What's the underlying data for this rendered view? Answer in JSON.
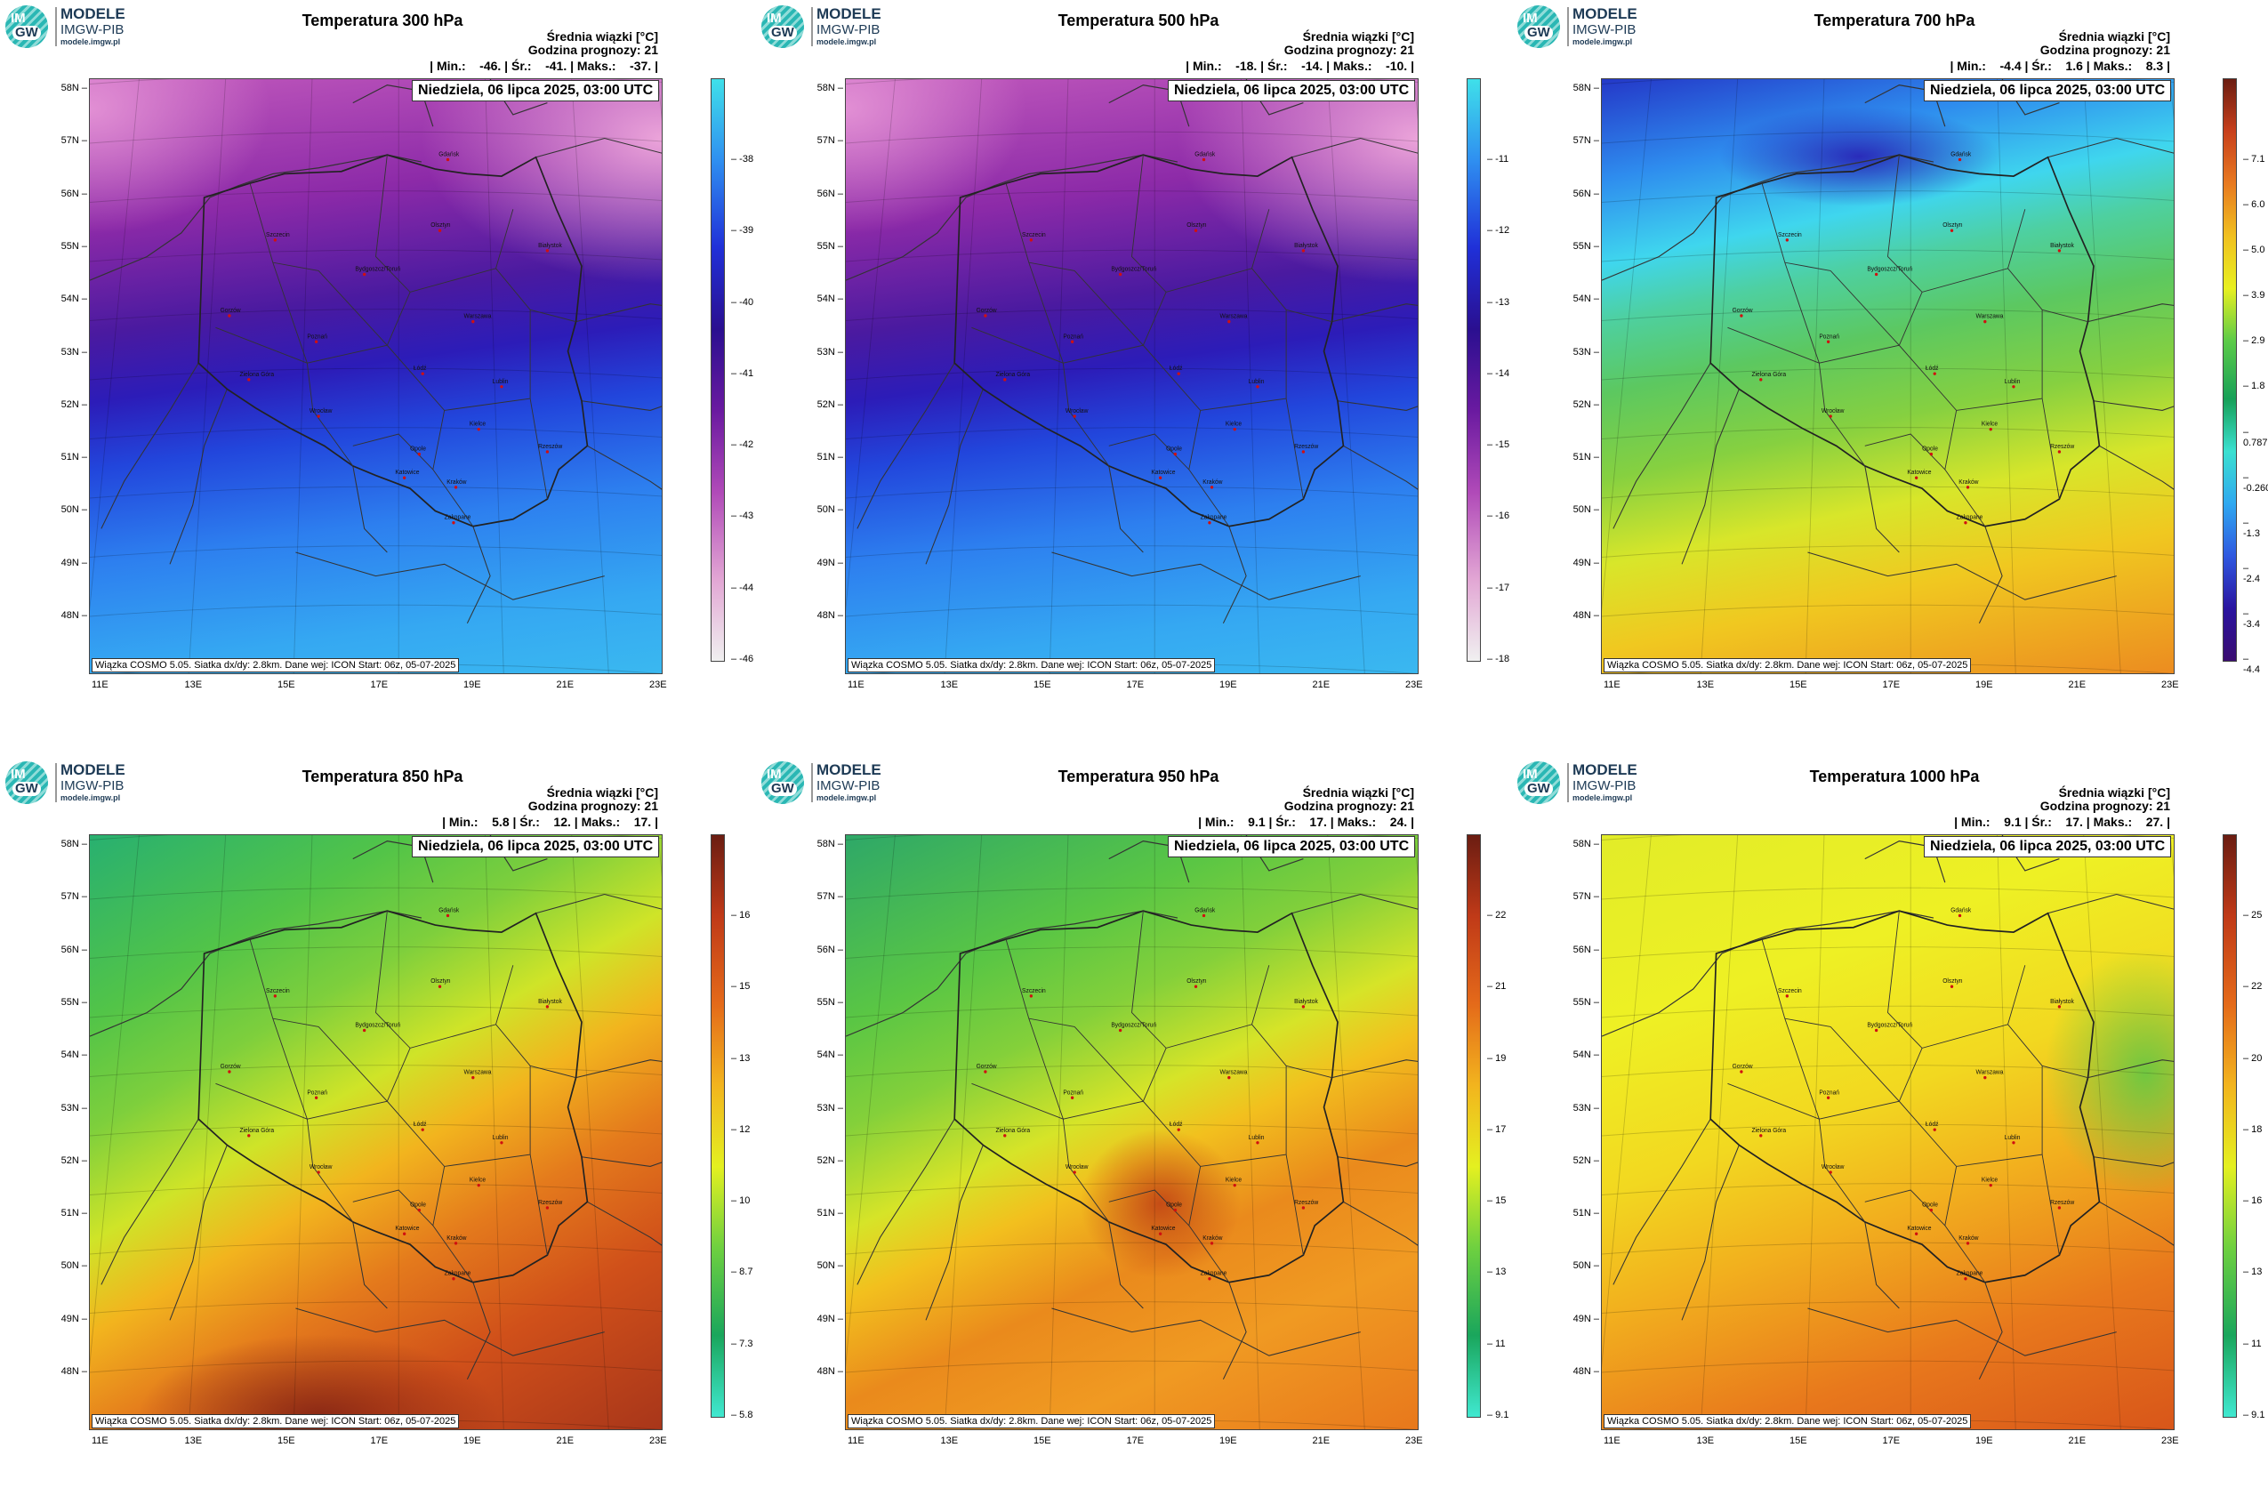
{
  "logo": {
    "l1": "IM",
    "l2": "GW",
    "t1": "MODELE",
    "t2": "IMGW-PIB",
    "t3": "modele.imgw.pl"
  },
  "info_line1": "Średnia wiązki [°C]",
  "info_line2": "Godzina prognozy: 21",
  "date": "Niedziela, 06 lipca 2025, 03:00 UTC",
  "footer": "Wiązka COSMO 5.05. Siatka dx/dy: 2.8km. Dane wej: ICON Start: 06z, 05-07-2025",
  "lat_labels": [
    "58N",
    "57N",
    "56N",
    "55N",
    "54N",
    "53N",
    "52N",
    "51N",
    "50N",
    "49N",
    "48N"
  ],
  "lon_labels": [
    "11E",
    "13E",
    "15E",
    "17E",
    "19E",
    "21E",
    "23E"
  ],
  "cities": [
    "Gdańsk",
    "Olsztyn",
    "Szczecin",
    "Białystok",
    "Bydgoszcz/Toruń",
    "Gorzów",
    "Poznań",
    "Warszawa",
    "Zielona Góra",
    "Łódź",
    "Lublin",
    "Wrocław",
    "Kielce",
    "Opole",
    "Rzeszów",
    "Katowice",
    "Kraków",
    "Zakopane"
  ],
  "panels": [
    {
      "title": "Temperatura 300 hPa",
      "stats": "| Min.:    -46. | Śr.:    -41. | Maks.:    -37. |",
      "ticks": [
        "-38",
        "-39",
        "-40",
        "-41",
        "-42",
        "-43",
        "-44",
        "-46"
      ],
      "colors": [
        "#3fe0ea",
        "#2f8ff0",
        "#2030d8",
        "#2a0f90",
        "#6a1aa0",
        "#b04ab8",
        "#e2a6d4",
        "#f0f0f0"
      ],
      "palette": "cool"
    },
    {
      "title": "Temperatura 500 hPa",
      "stats": "| Min.:    -18. | Śr.:    -14. | Maks.:    -10. |",
      "ticks": [
        "-11",
        "-12",
        "-13",
        "-14",
        "-15",
        "-16",
        "-17",
        "-18"
      ],
      "colors": [
        "#3fe0ea",
        "#2f8ff0",
        "#2030d8",
        "#2a0f90",
        "#6a1aa0",
        "#b04ab8",
        "#e2a6d4",
        "#f0f0f0"
      ],
      "palette": "cool"
    },
    {
      "title": "Temperatura 700 hPa",
      "stats": "| Min.:    -4.4 | Śr.:    1.6 | Maks.:    8.3 |",
      "ticks": [
        "7.1",
        "6.0",
        "5.0",
        "3.9",
        "2.9",
        "1.8",
        "0.787",
        "-0.260",
        "-1.3",
        "-2.4",
        "-3.4",
        "-4.4"
      ],
      "colors": [
        "#6b1d12",
        "#c8401c",
        "#e87a20",
        "#f0c020",
        "#e8f020",
        "#5ccb48",
        "#17a058",
        "#3ae0d0",
        "#2fa8f0",
        "#2f58e0",
        "#2a14a0",
        "#3a0c70"
      ],
      "palette": "warm700"
    },
    {
      "title": "Temperatura 850 hPa",
      "stats": "| Min.:    5.8 | Śr.:    12. | Maks.:    17. |",
      "ticks": [
        "16",
        "15",
        "13",
        "12",
        "10",
        "8.7",
        "7.3",
        "5.8"
      ],
      "colors": [
        "#6b1d12",
        "#c03a18",
        "#e46a1a",
        "#f2b41e",
        "#e4f020",
        "#6ed040",
        "#1aa65c",
        "#40e8d0"
      ],
      "palette": "warm850"
    },
    {
      "title": "Temperatura 950 hPa",
      "stats": "| Min.:    9.1 | Śr.:    17. | Maks.:    24. |",
      "ticks": [
        "22",
        "21",
        "19",
        "17",
        "15",
        "13",
        "11",
        "9.1"
      ],
      "colors": [
        "#6b1d12",
        "#c03a18",
        "#e46a1a",
        "#f2b41e",
        "#e4f020",
        "#6ed040",
        "#1aa65c",
        "#40e8d0"
      ],
      "palette": "warm950"
    },
    {
      "title": "Temperatura 1000 hPa",
      "stats": "| Min.:    9.1 | Śr.:    17. | Maks.:    27. |",
      "ticks": [
        "25",
        "22",
        "20",
        "18",
        "16",
        "13",
        "11",
        "9.1"
      ],
      "colors": [
        "#6b1d12",
        "#c03a18",
        "#e46a1a",
        "#f2b41e",
        "#e4f020",
        "#6ed040",
        "#1aa65c",
        "#40e8d0"
      ],
      "palette": "warm1000"
    }
  ]
}
